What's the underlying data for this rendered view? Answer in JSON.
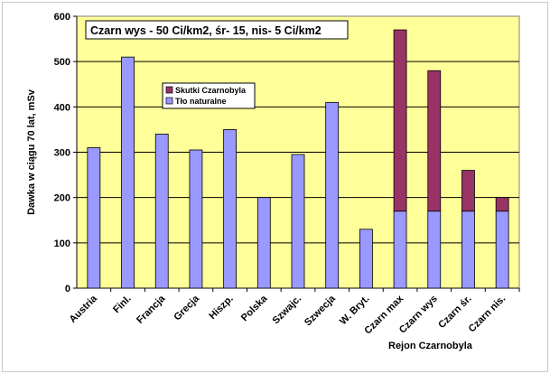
{
  "chart_data": {
    "type": "bar",
    "stacked": true,
    "title": "Czarn  wys - 50 Ci/km2,  śr- 15,  nis- 5 Ci/km2",
    "ylabel": "Dawka w ciągu 70 lat,  mSv",
    "xlabel_note": "Rejon Czarnobyla",
    "ylim": [
      0,
      600
    ],
    "yticks": [
      0,
      100,
      200,
      300,
      400,
      500,
      600
    ],
    "grid": true,
    "legend_position": "top-left",
    "categories": [
      "Austria",
      "Finl.",
      "Francja",
      "Grecja",
      "Hiszp.",
      "Polska",
      "Szwajc.",
      "Szwecja",
      "W. Bryt.",
      "Czarn max",
      "Czarn wys",
      "Czarn śr.",
      "Czarn nis."
    ],
    "series": [
      {
        "name": "Tło naturalne",
        "color": "#9999ff",
        "values": [
          310,
          510,
          340,
          305,
          350,
          200,
          295,
          410,
          130,
          170,
          170,
          170,
          170
        ]
      },
      {
        "name": "Skutki Czarnobyla",
        "color": "#993366",
        "values": [
          0,
          0,
          0,
          0,
          0,
          0,
          0,
          0,
          0,
          400,
          310,
          90,
          30
        ]
      }
    ],
    "colors": {
      "plot_background": "#ffff99",
      "grid": "#000000"
    }
  }
}
